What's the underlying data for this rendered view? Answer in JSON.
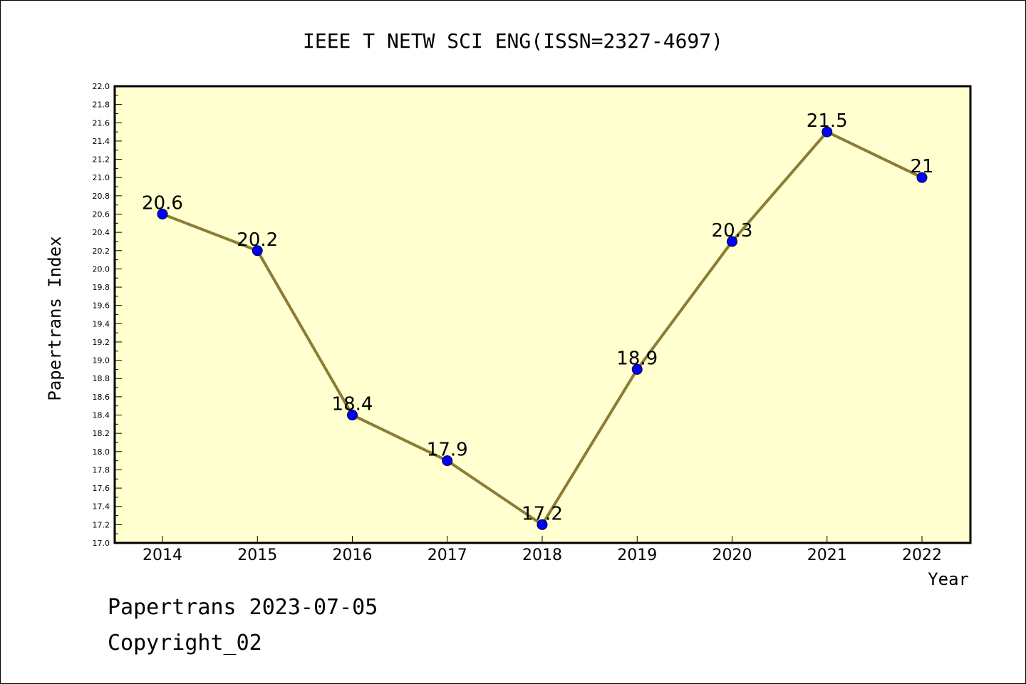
{
  "chart_data": {
    "type": "line",
    "title": "IEEE T NETW SCI ENG(ISSN=2327-4697)",
    "xlabel": "Year",
    "ylabel": "Papertrans Index",
    "categories": [
      "2014",
      "2015",
      "2016",
      "2017",
      "2018",
      "2019",
      "2020",
      "2021",
      "2022"
    ],
    "series": [
      {
        "values": [
          20.6,
          20.2,
          18.4,
          17.9,
          17.2,
          18.9,
          20.3,
          21.5,
          21.0
        ],
        "labels": [
          "20.6",
          "20.2",
          "18.4",
          "17.9",
          "17.2",
          "18.9",
          "20.3",
          "21.5",
          "21"
        ]
      }
    ],
    "ylim": [
      17.0,
      22.0
    ],
    "y_ticks": [
      "17.0",
      "17.2",
      "17.4",
      "17.6",
      "17.8",
      "18.0",
      "18.2",
      "18.4",
      "18.6",
      "18.8",
      "19.0",
      "19.2",
      "19.4",
      "19.6",
      "19.8",
      "20.0",
      "20.2",
      "20.4",
      "20.6",
      "20.8",
      "21.0",
      "21.2",
      "21.4",
      "21.6",
      "21.8",
      "22.0"
    ],
    "grid": false,
    "colors": {
      "plot_background": "#ffffd0",
      "line": "#8b7d35",
      "marker": "#0000ff"
    }
  },
  "footer": {
    "line1": "Papertrans 2023-07-05",
    "line2": "Copyright_02"
  }
}
